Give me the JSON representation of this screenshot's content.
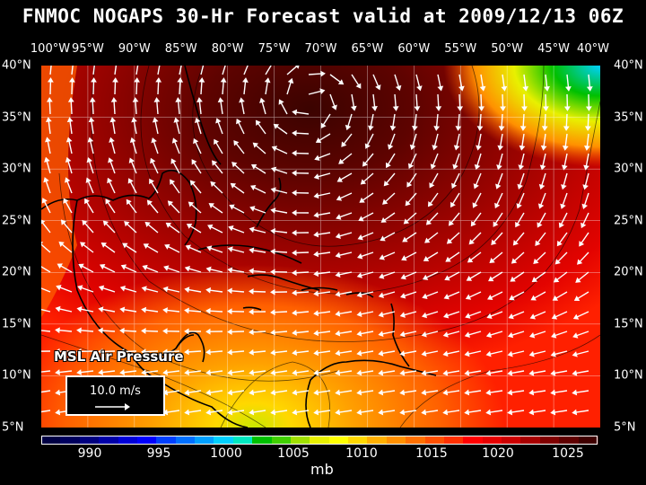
{
  "title": "FNMOC NOGAPS 30-Hr Forecast valid at 2009/12/13 06Z",
  "lon_labels": [
    "100°W",
    "95°W",
    "90°W",
    "85°W",
    "80°W",
    "75°W",
    "70°W",
    "65°W",
    "60°W",
    "55°W",
    "50°W",
    "45°W",
    "40°W"
  ],
  "lat_labels": [
    "40°N",
    "35°N",
    "30°N",
    "25°N",
    "20°N",
    "15°N",
    "10°N",
    "5°N"
  ],
  "overlay_label": "MSL Air Pressure",
  "legend": {
    "speed": "10.0 m/s"
  },
  "colorbar": {
    "labels": [
      "990",
      "995",
      "1000",
      "1005",
      "1010",
      "1015",
      "1020",
      "1025"
    ],
    "units": "mb",
    "colors": [
      "#000044",
      "#00005e",
      "#000080",
      "#0000a8",
      "#0000d8",
      "#0000ff",
      "#0040ff",
      "#0070ff",
      "#00a0ff",
      "#00d0ff",
      "#00e8c0",
      "#00c000",
      "#40d000",
      "#a0e000",
      "#e8f000",
      "#ffff00",
      "#ffd800",
      "#ffb000",
      "#ff9000",
      "#ff7000",
      "#ff5000",
      "#ff3000",
      "#ff0000",
      "#e60000",
      "#cc0000",
      "#a80000",
      "#800000",
      "#600000",
      "#400000"
    ]
  },
  "map_colors": {
    "low_1008": "#c8e800",
    "p1010": "#ffd800",
    "p1012": "#ffa000",
    "p1014": "#ff6000",
    "p1016": "#ff2000",
    "p1018": "#e00000",
    "p1020": "#b00000",
    "p1022": "#800000",
    "p1024": "#500000",
    "high": "#2a0000"
  }
}
